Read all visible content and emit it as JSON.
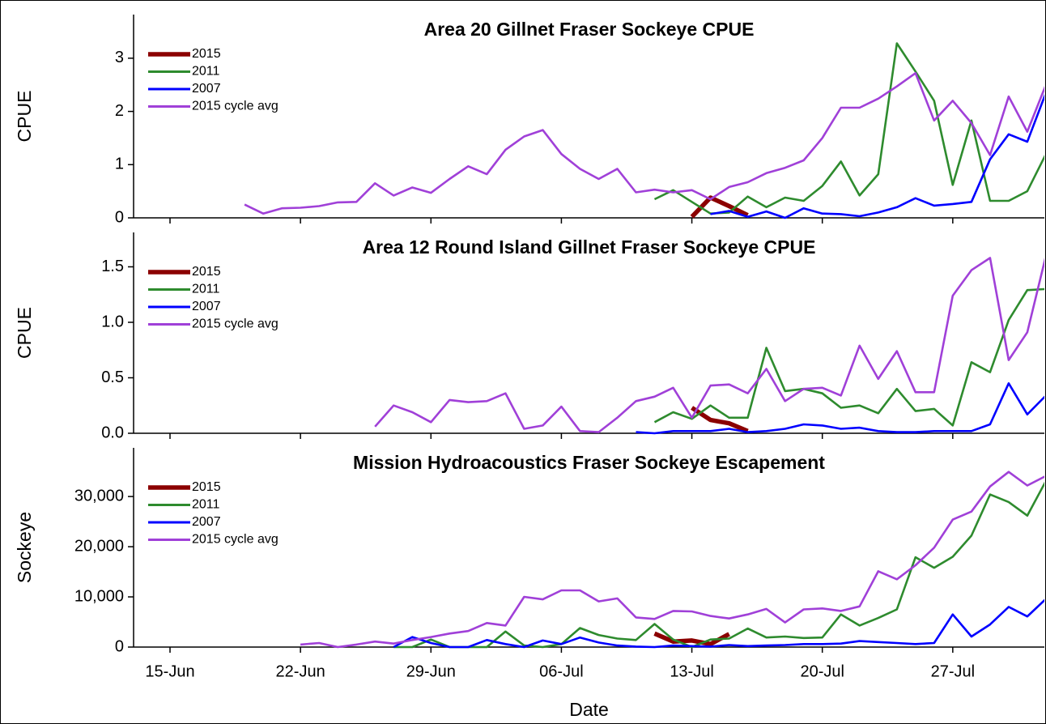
{
  "chart_data": [
    {
      "type": "line",
      "title": "Area 20 Gillnet Fraser Sockeye CPUE",
      "ylabel": "CPUE",
      "legend": "upper left",
      "ylim": [
        0,
        3.82
      ],
      "yticks": [
        0,
        1,
        2,
        3
      ],
      "series": [
        {
          "name": "2015",
          "color": "#8b0000",
          "values": [
            null,
            null,
            null,
            null,
            null,
            null,
            null,
            null,
            null,
            null,
            null,
            null,
            null,
            null,
            null,
            null,
            null,
            null,
            null,
            null,
            null,
            null,
            null,
            null,
            null,
            null,
            null,
            null,
            null,
            null,
            0.02,
            0.38,
            0.22,
            0.05,
            null,
            null,
            null,
            null,
            null,
            null,
            null,
            null,
            null,
            null,
            null,
            null,
            null,
            null,
            null,
            null
          ]
        },
        {
          "name": "2011",
          "color": "#2e8b2e",
          "values": [
            null,
            null,
            null,
            null,
            null,
            null,
            null,
            null,
            null,
            null,
            null,
            null,
            null,
            null,
            null,
            null,
            null,
            null,
            null,
            null,
            null,
            null,
            null,
            null,
            null,
            null,
            null,
            null,
            0.35,
            0.52,
            0.3,
            0.08,
            0.1,
            0.4,
            0.2,
            0.38,
            0.32,
            0.6,
            1.06,
            0.42,
            0.82,
            3.28,
            2.75,
            2.2,
            0.62,
            1.83,
            0.32,
            0.32,
            0.5,
            1.2
          ]
        },
        {
          "name": "2007",
          "color": "#0000ff",
          "values": [
            null,
            null,
            null,
            null,
            null,
            null,
            null,
            null,
            null,
            null,
            null,
            null,
            null,
            null,
            null,
            null,
            null,
            null,
            null,
            null,
            null,
            null,
            null,
            null,
            null,
            null,
            null,
            null,
            null,
            null,
            null,
            0.07,
            0.13,
            0.02,
            0.12,
            0,
            0.18,
            0.08,
            0.07,
            0.03,
            0.1,
            0.2,
            0.37,
            0.23,
            0.26,
            0.3,
            1.1,
            1.57,
            1.43,
            2.35
          ]
        },
        {
          "name": "2015 cycle avg",
          "color": "#a040d8",
          "values": [
            null,
            null,
            null,
            null,
            null,
            null,
            0.25,
            0.08,
            0.18,
            0.19,
            0.22,
            0.29,
            0.3,
            0.65,
            0.42,
            0.57,
            0.47,
            0.73,
            0.97,
            0.82,
            1.28,
            1.53,
            1.65,
            1.2,
            0.92,
            0.73,
            0.92,
            0.48,
            0.53,
            0.48,
            0.52,
            0.35,
            0.58,
            0.67,
            0.84,
            0.94,
            1.08,
            1.5,
            2.07,
            2.07,
            2.24,
            2.47,
            2.72,
            1.83,
            2.2,
            1.78,
            1.18,
            2.28,
            1.62,
            2.5
          ]
        }
      ]
    },
    {
      "type": "line",
      "title": "Area 12 Round Island Gillnet Fraser Sockeye CPUE",
      "ylabel": "CPUE",
      "legend": "upper left",
      "ylim": [
        0,
        1.81
      ],
      "yticks": [
        {
          "value": 0,
          "label": "0.0"
        },
        0.5,
        {
          "value": 1,
          "label": "1.0"
        },
        1.5
      ],
      "series": [
        {
          "name": "2015",
          "color": "#8b0000",
          "values": [
            null,
            null,
            null,
            null,
            null,
            null,
            null,
            null,
            null,
            null,
            null,
            null,
            null,
            null,
            null,
            null,
            null,
            null,
            null,
            null,
            null,
            null,
            null,
            null,
            null,
            null,
            null,
            null,
            null,
            null,
            0.23,
            0.12,
            0.09,
            0.02,
            null,
            null,
            null,
            null,
            null,
            null,
            null,
            null,
            null,
            null,
            null,
            null,
            null,
            null,
            null,
            null
          ]
        },
        {
          "name": "2011",
          "color": "#2e8b2e",
          "values": [
            null,
            null,
            null,
            null,
            null,
            null,
            null,
            null,
            null,
            null,
            null,
            null,
            null,
            null,
            null,
            null,
            null,
            null,
            null,
            null,
            null,
            null,
            null,
            null,
            null,
            null,
            null,
            null,
            0.1,
            0.19,
            0.13,
            0.25,
            0.14,
            0.14,
            0.77,
            0.38,
            0.4,
            0.36,
            0.23,
            0.25,
            0.18,
            0.4,
            0.2,
            0.22,
            0.07,
            0.64,
            0.55,
            1.02,
            1.29,
            1.3
          ]
        },
        {
          "name": "2007",
          "color": "#0000ff",
          "values": [
            null,
            null,
            null,
            null,
            null,
            null,
            null,
            null,
            null,
            null,
            null,
            null,
            null,
            null,
            null,
            null,
            null,
            null,
            null,
            null,
            null,
            null,
            null,
            null,
            null,
            null,
            null,
            0.01,
            0,
            0.02,
            0.02,
            0.02,
            0.04,
            0.01,
            0.02,
            0.04,
            0.08,
            0.07,
            0.04,
            0.05,
            0.02,
            0.01,
            0.01,
            0.02,
            0.02,
            0.02,
            0.08,
            0.45,
            0.17,
            0.34
          ]
        },
        {
          "name": "2015 cycle avg",
          "color": "#a040d8",
          "values": [
            null,
            null,
            null,
            null,
            null,
            null,
            null,
            null,
            null,
            null,
            null,
            null,
            null,
            0.06,
            0.25,
            0.19,
            0.1,
            0.3,
            0.28,
            0.29,
            0.36,
            0.04,
            0.07,
            0.24,
            0.02,
            0.01,
            0.14,
            0.29,
            0.33,
            0.41,
            0.14,
            0.43,
            0.44,
            0.36,
            0.58,
            0.29,
            0.4,
            0.41,
            0.34,
            0.79,
            0.49,
            0.74,
            0.37,
            0.37,
            1.24,
            1.47,
            1.58,
            0.66,
            0.91,
            1.6
          ]
        }
      ]
    },
    {
      "type": "line",
      "title": "Mission Hydroacoustics Fraser Sockeye Escapement",
      "ylabel": "Sockeye",
      "xlabel": "Date",
      "legend": "upper left",
      "categories": [
        null,
        null,
        "15-Jun",
        null,
        null,
        null,
        null,
        null,
        null,
        "22-Jun",
        null,
        null,
        null,
        null,
        null,
        null,
        "29-Jun",
        null,
        null,
        null,
        null,
        null,
        null,
        "06-Jul",
        null,
        null,
        null,
        null,
        null,
        null,
        "13-Jul",
        null,
        null,
        null,
        null,
        null,
        null,
        "20-Jul",
        null,
        null,
        null,
        null,
        null,
        null,
        "27-Jul",
        null,
        null,
        null,
        null,
        null
      ],
      "ylim": [
        0,
        39700
      ],
      "yticks": [
        0,
        {
          "value": 10000,
          "label": "10,000"
        },
        {
          "value": 20000,
          "label": "20,000"
        },
        {
          "value": 30000,
          "label": "30,000"
        }
      ],
      "series": [
        {
          "name": "2015",
          "color": "#8b0000",
          "values": [
            null,
            null,
            null,
            null,
            null,
            null,
            null,
            null,
            null,
            null,
            null,
            null,
            null,
            null,
            null,
            null,
            null,
            null,
            null,
            null,
            null,
            null,
            null,
            null,
            null,
            null,
            null,
            null,
            2700,
            1100,
            1300,
            600,
            2600,
            null,
            null,
            null,
            null,
            null,
            null,
            null,
            null,
            null,
            null,
            null,
            null,
            null,
            null,
            null,
            null,
            null
          ]
        },
        {
          "name": "2011",
          "color": "#2e8b2e",
          "values": [
            null,
            null,
            null,
            null,
            null,
            null,
            null,
            null,
            null,
            null,
            null,
            null,
            null,
            null,
            0,
            0,
            1500,
            0,
            0,
            0,
            3100,
            300,
            0,
            600,
            3800,
            2400,
            1700,
            1400,
            4600,
            1500,
            0,
            1500,
            1700,
            3700,
            1900,
            2100,
            1800,
            1900,
            6500,
            4300,
            5800,
            7500,
            17900,
            15800,
            18000,
            22200,
            30400,
            28900,
            26200,
            33100
          ]
        },
        {
          "name": "2007",
          "color": "#0000ff",
          "values": [
            null,
            null,
            null,
            null,
            null,
            null,
            null,
            null,
            null,
            null,
            null,
            null,
            null,
            null,
            0,
            2000,
            800,
            0,
            0,
            1400,
            600,
            0,
            1300,
            600,
            1900,
            900,
            300,
            100,
            0,
            300,
            200,
            100,
            400,
            200,
            300,
            400,
            600,
            600,
            700,
            1200,
            1000,
            800,
            600,
            800,
            6500,
            2100,
            4500,
            8000,
            6100,
            9600
          ]
        },
        {
          "name": "2015 cycle avg",
          "color": "#a040d8",
          "values": [
            null,
            null,
            null,
            null,
            null,
            null,
            null,
            null,
            null,
            500,
            800,
            0,
            500,
            1100,
            700,
            1400,
            2000,
            2700,
            3200,
            4800,
            4300,
            10000,
            9500,
            11300,
            11300,
            9100,
            9700,
            5900,
            5600,
            7200,
            7100,
            6200,
            5700,
            6500,
            7600,
            4900,
            7500,
            7700,
            7200,
            8100,
            15100,
            13500,
            16300,
            19800,
            25400,
            27000,
            32000,
            34900,
            32200,
            34100
          ]
        }
      ]
    }
  ]
}
